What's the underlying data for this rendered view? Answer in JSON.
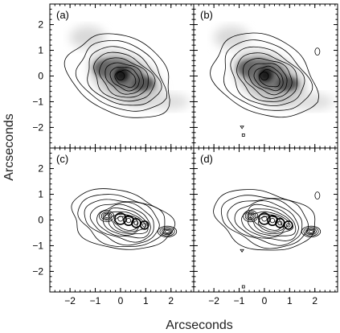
{
  "figure": {
    "xlabel": "Arcseconds",
    "ylabel": "Arcseconds",
    "x_ticks": [
      -2,
      -1,
      0,
      1,
      2
    ],
    "y_ticks": [
      2,
      1,
      0,
      -1,
      -2
    ],
    "panels": [
      {
        "label": "(a)",
        "overlay": "smooth-contours",
        "source_markers": false
      },
      {
        "label": "(b)",
        "overlay": "smooth-contours",
        "source_markers": false
      },
      {
        "label": "(c)",
        "overlay": "dense-contours",
        "source_markers": true
      },
      {
        "label": "(d)",
        "overlay": "dense-contours",
        "source_markers": true
      }
    ],
    "x_range": [
      -2.8,
      2.9
    ],
    "y_range": [
      -2.8,
      2.8
    ]
  }
}
